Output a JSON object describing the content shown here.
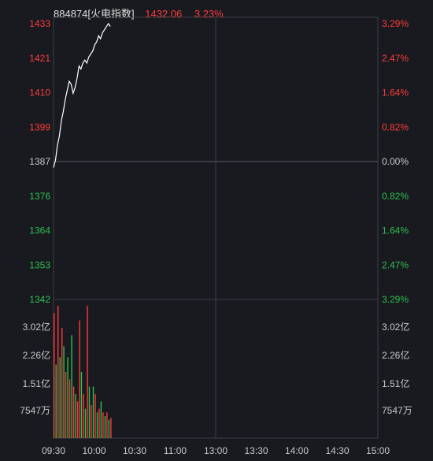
{
  "header": {
    "symbol": "884874[火电指数]",
    "price": "1432.06",
    "change_pct": "3.23%"
  },
  "colors": {
    "background": "#181a1f",
    "grid": "#3a3d44",
    "up": "#ff3b3b",
    "down": "#2fbf4f",
    "flat": "#c8c8c8",
    "price_line": "#ffffff"
  },
  "chart_data": {
    "type": "line",
    "price_axis_left": [
      "1433",
      "1421",
      "1410",
      "1399",
      "1387",
      "1376",
      "1364",
      "1353",
      "1342"
    ],
    "price_axis_right": [
      "3.29%",
      "2.47%",
      "1.64%",
      "0.82%",
      "0.00%",
      "0.82%",
      "1.64%",
      "2.47%",
      "3.29%"
    ],
    "price_axis_colors": [
      "up",
      "up",
      "up",
      "up",
      "flat",
      "down",
      "down",
      "down",
      "down"
    ],
    "price_range": [
      1342,
      1433
    ],
    "base_price": 1387,
    "volume_axis_labels": [
      "3.02亿",
      "2.26亿",
      "1.51亿",
      "7547万"
    ],
    "time_labels": [
      "09:30",
      "10:00",
      "10:30",
      "11:00",
      "13:00",
      "13:30",
      "14:00",
      "14:30",
      "15:00"
    ],
    "series": [
      {
        "values": [
          1385.5,
          1388,
          1393,
          1396,
          1401,
          1404,
          1408,
          1411,
          1414,
          1413,
          1410,
          1412,
          1415,
          1419,
          1418,
          1420,
          1421,
          1420,
          1422,
          1423,
          1424,
          1426,
          1427,
          1429,
          1428,
          1430,
          1431,
          1432,
          1433,
          1432.06
        ]
      }
    ],
    "volume": {
      "max": 37700,
      "values": [
        34000,
        20000,
        36000,
        22000,
        30000,
        25000,
        18000,
        22000,
        16000,
        28000,
        14000,
        12000,
        10000,
        32000,
        18000,
        12000,
        8000,
        36000,
        14000,
        9000,
        14000,
        12000,
        7000,
        8000,
        10000,
        7000,
        6000,
        7000,
        5000,
        5500
      ],
      "colors": [
        "up",
        "down",
        "up",
        "down",
        "up",
        "down",
        "up",
        "down",
        "up",
        "down",
        "up",
        "down",
        "up",
        "up",
        "down",
        "up",
        "down",
        "up",
        "down",
        "up",
        "down",
        "up",
        "down",
        "up",
        "down",
        "up",
        "down",
        "up",
        "down",
        "up"
      ]
    }
  }
}
